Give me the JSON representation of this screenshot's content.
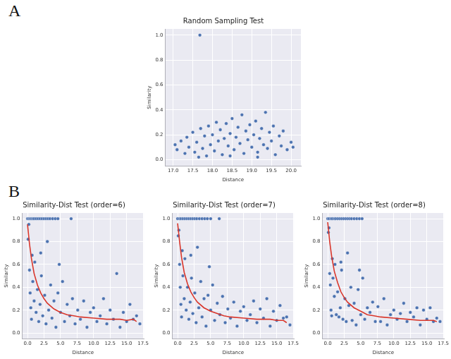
{
  "chart_data": [
    {
      "type": "scatter",
      "panel_label": "A",
      "title": "Random Sampling Test",
      "x_label": "Distance",
      "y_label": "Similarity",
      "grid": true,
      "xlim": [
        16.8,
        20.25
      ],
      "xticks": [
        {
          "value": 17,
          "label": "17.0"
        },
        17.5,
        {
          "value": 18,
          "label": "18.0"
        },
        18.5,
        {
          "value": 19,
          "label": "19.0"
        },
        19.5,
        {
          "value": 20,
          "label": "20.0"
        }
      ],
      "ylim": [
        -0.05,
        1.05
      ],
      "yticks": [
        {
          "value": 0,
          "label": "0.0"
        },
        0.2,
        0.4,
        0.6,
        0.8,
        {
          "value": 1,
          "label": "1.0"
        }
      ],
      "series": [
        {
          "type": "scatter",
          "color": "#4c72b0",
          "marker": "circle",
          "x": [
            17.05,
            17.1,
            17.2,
            17.3,
            17.35,
            17.4,
            17.5,
            17.55,
            17.6,
            17.7,
            17.75,
            17.8,
            17.85,
            17.9,
            17.95,
            18.0,
            18.05,
            18.1,
            18.15,
            18.2,
            18.25,
            18.3,
            18.35,
            18.4,
            18.45,
            18.5,
            18.55,
            18.6,
            18.65,
            18.7,
            18.75,
            18.8,
            18.85,
            18.9,
            18.95,
            19.0,
            19.05,
            19.1,
            19.15,
            19.2,
            19.25,
            19.3,
            19.35,
            19.4,
            19.45,
            19.5,
            19.55,
            19.6,
            19.7,
            19.75,
            19.8,
            19.9,
            20.0,
            20.05,
            17.65,
            18.45,
            19.15,
            17.68
          ],
          "values": [
            0.12,
            0.08,
            0.15,
            0.05,
            0.18,
            0.1,
            0.22,
            0.06,
            0.14,
            0.25,
            0.09,
            0.19,
            0.03,
            0.27,
            0.12,
            0.2,
            0.07,
            0.3,
            0.15,
            0.24,
            0.04,
            0.17,
            0.29,
            0.11,
            0.21,
            0.33,
            0.08,
            0.18,
            0.26,
            0.13,
            0.36,
            0.05,
            0.23,
            0.16,
            0.28,
            0.1,
            0.2,
            0.31,
            0.06,
            0.17,
            0.25,
            0.12,
            0.38,
            0.09,
            0.22,
            0.15,
            0.27,
            0.04,
            0.19,
            0.11,
            0.23,
            0.08,
            0.14,
            0.1,
            0.02,
            0.03,
            0.02,
            1.0
          ]
        }
      ]
    },
    {
      "type": "scatter",
      "panel_label": "B",
      "title": "Similarity-Dist Test (order=6)",
      "x_label": "Distance",
      "y_label": "Similarity",
      "grid": true,
      "xlim": [
        -0.8,
        17.6
      ],
      "xticks": [
        {
          "value": 0,
          "label": "0.0"
        },
        2.5,
        {
          "value": 5,
          "label": "5.0"
        },
        7.5,
        {
          "value": 10,
          "label": "10.0"
        },
        12.5,
        {
          "value": 15,
          "label": "15.0"
        },
        17.5
      ],
      "ylim": [
        -0.05,
        1.05
      ],
      "yticks": [
        {
          "value": 0,
          "label": "0.0"
        },
        0.2,
        0.4,
        0.6,
        0.8,
        {
          "value": 1,
          "label": "1.0"
        }
      ],
      "series": [
        {
          "type": "scatter",
          "color": "#4c72b0",
          "marker": "circle",
          "x": [
            0.0,
            0.2,
            0.4,
            0.6,
            0.8,
            1.0,
            1.3,
            1.6,
            1.9,
            2.2,
            2.5,
            2.8,
            3.1,
            3.4,
            3.8,
            4.2,
            4.6,
            6.6,
            0.1,
            0.3,
            0.4,
            0.5,
            0.6,
            0.8,
            1.0,
            1.1,
            1.3,
            1.5,
            1.7,
            1.9,
            2.1,
            2.3,
            2.6,
            2.8,
            3.0,
            3.2,
            3.5,
            3.7,
            4.0,
            4.3,
            4.6,
            5.0,
            5.3,
            5.6,
            6.0,
            6.4,
            6.8,
            7.2,
            7.6,
            8.0,
            8.5,
            9.0,
            9.5,
            10.0,
            10.5,
            11.0,
            11.5,
            12.0,
            12.5,
            13.0,
            13.5,
            14.0,
            14.5,
            15.0,
            15.5,
            16.0,
            16.5,
            17.0,
            0.2,
            0.7,
            2.0,
            4.8
          ],
          "values": [
            1.0,
            1.0,
            1.0,
            1.0,
            1.0,
            1.0,
            1.0,
            1.0,
            1.0,
            1.0,
            1.0,
            1.0,
            1.0,
            1.0,
            1.0,
            1.0,
            1.0,
            1.0,
            0.82,
            0.55,
            0.35,
            0.22,
            0.12,
            0.45,
            0.28,
            0.62,
            0.18,
            0.38,
            0.1,
            0.25,
            0.5,
            0.15,
            0.33,
            0.08,
            0.8,
            0.2,
            0.42,
            0.13,
            0.28,
            0.05,
            0.35,
            0.18,
            0.45,
            0.1,
            0.25,
            0.15,
            0.3,
            0.08,
            0.2,
            0.12,
            0.28,
            0.05,
            0.18,
            0.22,
            0.1,
            0.15,
            0.3,
            0.08,
            0.2,
            0.12,
            0.52,
            0.05,
            0.18,
            0.1,
            0.25,
            0.12,
            0.15,
            0.08,
            0.95,
            0.68,
            0.7,
            0.6
          ]
        },
        {
          "type": "line",
          "color": "#d9362b",
          "line_style": "solid",
          "x": [
            0.0,
            0.3,
            0.6,
            1.0,
            1.5,
            2.0,
            2.5,
            3.0,
            4.0,
            5.0,
            6.0,
            7.0,
            8.0,
            10.0,
            12.0,
            14.0,
            15.0,
            16.0,
            16.5
          ],
          "values": [
            0.95,
            0.78,
            0.65,
            0.52,
            0.42,
            0.35,
            0.3,
            0.26,
            0.21,
            0.18,
            0.16,
            0.15,
            0.14,
            0.13,
            0.12,
            0.12,
            0.11,
            0.12,
            0.1
          ]
        }
      ]
    },
    {
      "type": "scatter",
      "title": "Similarity-Dist Test (order=7)",
      "x_label": "Distance",
      "y_label": "Similarity",
      "grid": true,
      "xlim": [
        -0.8,
        17.6
      ],
      "xticks": [
        {
          "value": 0,
          "label": "0.0"
        },
        2.5,
        {
          "value": 5,
          "label": "5.0"
        },
        7.5,
        {
          "value": 10,
          "label": "10.0"
        },
        12.5,
        {
          "value": 15,
          "label": "15.0"
        },
        17.5
      ],
      "ylim": [
        -0.05,
        1.05
      ],
      "yticks": [
        {
          "value": 0,
          "label": "0.0"
        },
        0.2,
        0.4,
        0.6,
        0.8,
        {
          "value": 1,
          "label": "1.0"
        }
      ],
      "series": [
        {
          "type": "scatter",
          "color": "#4c72b0",
          "marker": "circle",
          "x": [
            0.0,
            0.3,
            0.5,
            0.8,
            1.1,
            1.4,
            1.7,
            2.0,
            2.3,
            2.6,
            2.9,
            3.3,
            3.7,
            4.1,
            4.5,
            5.0,
            6.3,
            0.1,
            0.3,
            0.4,
            0.5,
            0.6,
            0.8,
            1.0,
            1.1,
            1.3,
            1.5,
            1.7,
            1.9,
            2.1,
            2.3,
            2.6,
            2.8,
            3.0,
            3.2,
            3.5,
            3.7,
            4.0,
            4.3,
            4.6,
            5.0,
            5.3,
            5.6,
            6.0,
            6.4,
            6.8,
            7.2,
            7.6,
            8.0,
            8.5,
            9.0,
            9.5,
            10.0,
            10.5,
            11.0,
            11.5,
            12.0,
            12.5,
            13.0,
            13.5,
            14.0,
            14.5,
            15.0,
            15.5,
            16.0,
            16.5,
            17.0,
            0.2,
            0.7,
            2.0,
            4.8
          ],
          "values": [
            1.0,
            1.0,
            1.0,
            1.0,
            1.0,
            1.0,
            1.0,
            1.0,
            1.0,
            1.0,
            1.0,
            1.0,
            1.0,
            1.0,
            1.0,
            1.0,
            1.0,
            0.85,
            0.6,
            0.4,
            0.25,
            0.14,
            0.5,
            0.3,
            0.65,
            0.2,
            0.4,
            0.12,
            0.27,
            0.48,
            0.17,
            0.35,
            0.09,
            0.75,
            0.22,
            0.45,
            0.14,
            0.3,
            0.06,
            0.33,
            0.2,
            0.42,
            0.11,
            0.26,
            0.16,
            0.32,
            0.09,
            0.21,
            0.13,
            0.27,
            0.06,
            0.19,
            0.23,
            0.11,
            0.16,
            0.28,
            0.09,
            0.21,
            0.13,
            0.3,
            0.06,
            0.19,
            0.11,
            0.24,
            0.13,
            0.14,
            0.07,
            0.9,
            0.72,
            0.68,
            0.58
          ]
        },
        {
          "type": "line",
          "color": "#d9362b",
          "line_style": "solid",
          "x": [
            0.0,
            0.3,
            0.6,
            1.0,
            1.5,
            2.0,
            2.5,
            3.0,
            4.0,
            5.0,
            6.0,
            7.0,
            8.0,
            10.0,
            12.0,
            14.0,
            15.0,
            16.0,
            16.5
          ],
          "values": [
            0.96,
            0.8,
            0.66,
            0.53,
            0.43,
            0.36,
            0.31,
            0.27,
            0.22,
            0.19,
            0.17,
            0.15,
            0.14,
            0.13,
            0.12,
            0.12,
            0.11,
            0.11,
            0.09
          ]
        }
      ]
    },
    {
      "type": "scatter",
      "title": "Similarity-Dist Test (order=8)",
      "x_label": "Distance",
      "y_label": "Similarity",
      "grid": true,
      "xlim": [
        -0.8,
        17.6
      ],
      "xticks": [
        {
          "value": 0,
          "label": "0.0"
        },
        2.5,
        {
          "value": 5,
          "label": "5.0"
        },
        7.5,
        {
          "value": 10,
          "label": "10.0"
        },
        12.5,
        {
          "value": 15,
          "label": "15.0"
        },
        17.5
      ],
      "ylim": [
        -0.05,
        1.05
      ],
      "yticks": [
        {
          "value": 0,
          "label": "0.0"
        },
        0.2,
        0.4,
        0.6,
        0.8,
        {
          "value": 1,
          "label": "1.0"
        }
      ],
      "series": [
        {
          "type": "scatter",
          "color": "#4c72b0",
          "marker": "circle",
          "x": [
            0.0,
            0.2,
            0.5,
            0.7,
            1.0,
            1.2,
            1.5,
            1.8,
            2.1,
            2.4,
            2.7,
            3.0,
            3.3,
            3.6,
            4.0,
            4.4,
            4.8,
            5.2,
            0.1,
            0.3,
            0.4,
            0.5,
            0.6,
            0.8,
            1.0,
            1.1,
            1.3,
            1.5,
            1.7,
            1.9,
            2.1,
            2.3,
            2.6,
            2.8,
            3.0,
            3.2,
            3.5,
            3.7,
            4.0,
            4.3,
            4.6,
            5.0,
            5.3,
            5.6,
            6.0,
            6.4,
            6.8,
            7.2,
            7.6,
            8.0,
            8.5,
            9.0,
            9.5,
            10.0,
            10.5,
            11.0,
            11.5,
            12.0,
            12.5,
            13.0,
            13.5,
            14.0,
            14.5,
            15.0,
            15.5,
            16.0,
            16.5,
            17.0,
            0.2,
            0.7,
            2.0,
            4.8
          ],
          "values": [
            1.0,
            1.0,
            1.0,
            1.0,
            1.0,
            1.0,
            1.0,
            1.0,
            1.0,
            1.0,
            1.0,
            1.0,
            1.0,
            1.0,
            1.0,
            1.0,
            1.0,
            1.0,
            0.88,
            0.52,
            0.42,
            0.2,
            0.15,
            0.48,
            0.32,
            0.6,
            0.16,
            0.36,
            0.14,
            0.22,
            0.55,
            0.12,
            0.3,
            0.1,
            0.7,
            0.24,
            0.4,
            0.11,
            0.26,
            0.07,
            0.38,
            0.16,
            0.48,
            0.12,
            0.22,
            0.18,
            0.27,
            0.1,
            0.23,
            0.1,
            0.3,
            0.07,
            0.16,
            0.2,
            0.12,
            0.17,
            0.26,
            0.1,
            0.18,
            0.14,
            0.22,
            0.07,
            0.2,
            0.12,
            0.22,
            0.1,
            0.13,
            0.1,
            0.92,
            0.65,
            0.62,
            0.55
          ]
        },
        {
          "type": "line",
          "color": "#d9362b",
          "line_style": "solid",
          "x": [
            0.0,
            0.3,
            0.6,
            1.0,
            1.5,
            2.0,
            2.5,
            3.0,
            4.0,
            5.0,
            6.0,
            7.0,
            8.0,
            10.0,
            12.0,
            14.0,
            15.0,
            16.0,
            16.5
          ],
          "values": [
            0.97,
            0.8,
            0.67,
            0.54,
            0.44,
            0.36,
            0.31,
            0.27,
            0.22,
            0.19,
            0.16,
            0.15,
            0.14,
            0.13,
            0.12,
            0.11,
            0.11,
            0.11,
            0.1
          ]
        }
      ]
    }
  ]
}
